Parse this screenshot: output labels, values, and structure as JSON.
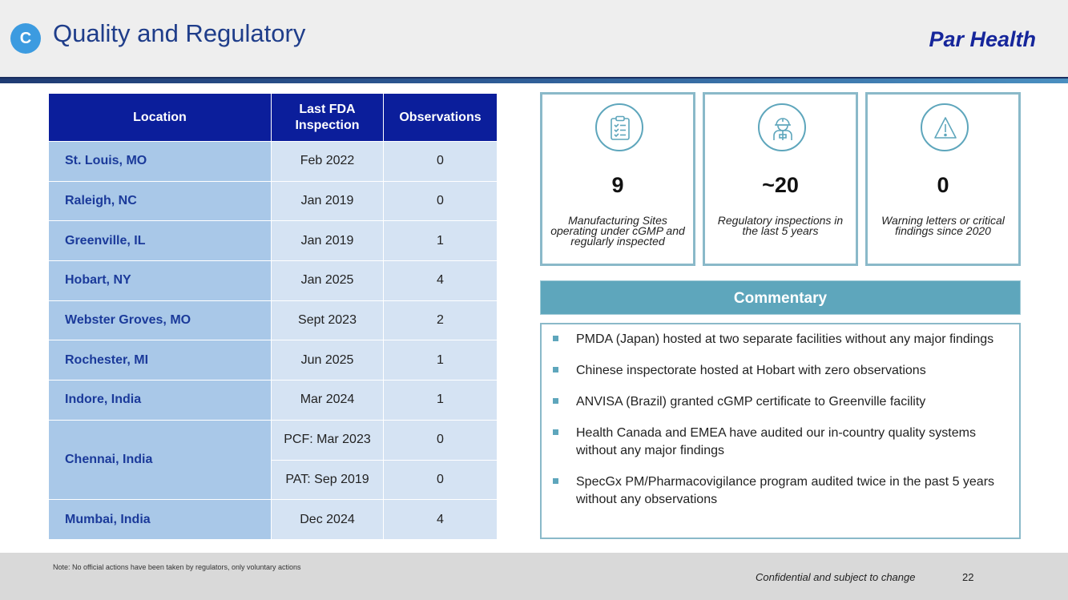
{
  "header": {
    "section_letter": "C",
    "title": "Quality and Regulatory",
    "brand": "Par Health"
  },
  "table": {
    "columns": [
      "Location",
      "Last FDA Inspection",
      "Observations"
    ],
    "rows": [
      {
        "location": "St. Louis, MO",
        "inspection": "Feb 2022",
        "observations": "0"
      },
      {
        "location": "Raleigh, NC",
        "inspection": "Jan 2019",
        "observations": "0"
      },
      {
        "location": "Greenville, IL",
        "inspection": "Jan 2019",
        "observations": "1"
      },
      {
        "location": "Hobart, NY",
        "inspection": "Jan 2025",
        "observations": "4"
      },
      {
        "location": "Webster Groves, MO",
        "inspection": "Sept 2023",
        "observations": "2"
      },
      {
        "location": "Rochester, MI",
        "inspection": "Jun 2025",
        "observations": "1"
      },
      {
        "location": "Indore, India",
        "inspection": "Mar 2024",
        "observations": "1"
      },
      {
        "location": "Chennai, India",
        "sub": [
          {
            "inspection": "PCF: Mar 2023",
            "observations": "0"
          },
          {
            "inspection": "PAT: Sep 2019",
            "observations": "0"
          }
        ]
      },
      {
        "location": "Mumbai, India",
        "inspection": "Dec 2024",
        "observations": "4"
      }
    ]
  },
  "stats": [
    {
      "icon": "clipboard-checklist-icon",
      "value": "9",
      "caption": "Manufacturing Sites operating under cGMP and regularly inspected"
    },
    {
      "icon": "worker-hardhat-icon",
      "value": "~20",
      "caption": "Regulatory inspections in the last 5 years"
    },
    {
      "icon": "warning-triangle-icon",
      "value": "0",
      "caption": "Warning letters or critical findings since 2020"
    }
  ],
  "commentary": {
    "title": "Commentary",
    "items": [
      "PMDA (Japan) hosted at two separate facilities without any major findings",
      "Chinese inspectorate hosted at Hobart with zero observations",
      "ANVISA (Brazil) granted cGMP certificate to Greenville facility",
      "Health Canada and EMEA have audited our in-country quality systems without any major findings",
      "SpecGx PM/Pharmacovigilance program audited twice in the past 5 years without any observations"
    ]
  },
  "footer": {
    "note": "Note: No official actions have been taken by regulators, only voluntary actions",
    "confidential": "Confidential and subject to change",
    "page_number": "22"
  },
  "colors": {
    "table_header": "#0b1e9b",
    "location_cell": "#a9c8e8",
    "value_cell": "#d5e3f3",
    "accent_teal": "#5ea6bc",
    "title_blue": "#1f3d8a"
  }
}
